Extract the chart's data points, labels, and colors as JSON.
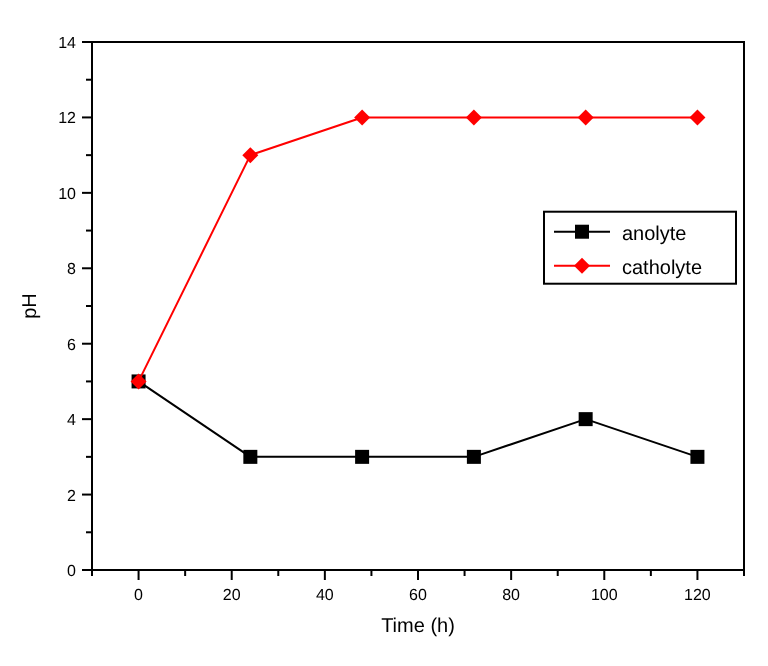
{
  "chart_data": {
    "type": "line",
    "xlabel": "Time (h)",
    "ylabel": "pH",
    "x": [
      0,
      24,
      48,
      72,
      96,
      120
    ],
    "series": [
      {
        "name": "anolyte",
        "color": "#000000",
        "marker": "square",
        "values": [
          5,
          3,
          3,
          3,
          4,
          3
        ]
      },
      {
        "name": "catholyte",
        "color": "#ff0000",
        "marker": "diamond",
        "values": [
          5,
          11,
          12,
          12,
          12,
          12
        ]
      }
    ],
    "xlim": [
      -10,
      130
    ],
    "xticks": [
      {
        "value": -10,
        "label": null
      },
      0,
      {
        "value": 10,
        "label": null
      },
      20,
      {
        "value": 30,
        "label": null
      },
      40,
      {
        "value": 50,
        "label": null
      },
      60,
      {
        "value": 70,
        "label": null
      },
      80,
      {
        "value": 90,
        "label": null
      },
      100,
      {
        "value": 110,
        "label": null
      },
      120,
      {
        "value": 130,
        "label": null
      }
    ],
    "ylim": [
      0,
      14
    ],
    "yticks": [
      0,
      {
        "value": 1,
        "label": null
      },
      2,
      {
        "value": 3,
        "label": null
      },
      4,
      {
        "value": 5,
        "label": null
      },
      6,
      {
        "value": 7,
        "label": null
      },
      8,
      {
        "value": 9,
        "label": null
      },
      10,
      {
        "value": 11,
        "label": null
      },
      12,
      {
        "value": 13,
        "label": null
      },
      14
    ],
    "legend": "right",
    "line_style": "solid",
    "grid": false
  }
}
